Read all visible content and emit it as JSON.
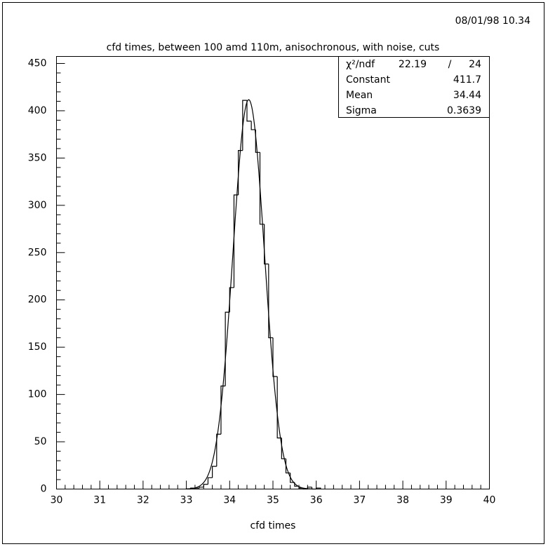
{
  "chart_data": {
    "type": "histogram",
    "timestamp": "08/01/98  10.34",
    "title": "cfd times, between 100 amd 110m, anisochronous, with noise, cuts",
    "x_label": "cfd times",
    "bins": [
      33,
      33.1,
      33.2,
      33.3,
      33.4,
      33.5,
      33.6,
      33.7,
      33.8,
      33.9,
      34,
      34.1,
      34.2,
      34.3,
      34.4,
      34.5,
      34.6,
      34.7,
      34.8,
      34.9,
      35,
      35.1,
      35.2,
      35.3,
      35.4,
      35.5,
      35.6,
      35.7,
      35.8,
      35.9,
      36,
      36.1
    ],
    "values": [
      0,
      1,
      1,
      2,
      5,
      12,
      24,
      58,
      109,
      187,
      213,
      311,
      358,
      411,
      389,
      380,
      356,
      280,
      238,
      160,
      119,
      54,
      32,
      17,
      7,
      3,
      1,
      0,
      2,
      0,
      1
    ],
    "color": "#000000",
    "xlim": [
      30,
      40
    ],
    "xticks": [
      30,
      31,
      32,
      33,
      34,
      35,
      36,
      37,
      38,
      39,
      40
    ],
    "x_minor_divisions": 5,
    "ylim": [
      0,
      450
    ],
    "yticks": [
      0,
      50,
      100,
      150,
      200,
      250,
      300,
      350,
      400,
      450
    ],
    "y_minor_divisions": 5,
    "fit": {
      "chi2_label": "χ²/ndf",
      "chi2": 22.19,
      "separator": "/",
      "ndf": 24,
      "constant_label": "Constant",
      "constant": 411.7,
      "mean_label": "Mean",
      "mean": 34.44,
      "sigma_label": "Sigma",
      "sigma": 0.3639
    }
  }
}
